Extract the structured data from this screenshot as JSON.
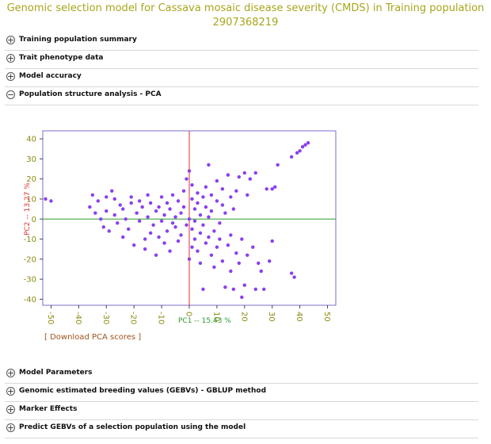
{
  "page": {
    "title_line1": "Genomic selection model for Cassava mosaic disease severity (CMDS) in Training population",
    "title_line2": "2907368219"
  },
  "sections_top": [
    {
      "label": "Training population summary",
      "toggle": "+"
    },
    {
      "label": "Trait phenotype data",
      "toggle": "+"
    },
    {
      "label": "Model accuracy",
      "toggle": "+"
    },
    {
      "label": "Population structure analysis - PCA",
      "toggle": "−"
    }
  ],
  "sections_bottom": [
    {
      "label": "Model Parameters",
      "toggle": "+"
    },
    {
      "label": "Genomic estimated breeding values (GEBVs) - GBLUP method",
      "toggle": "+"
    },
    {
      "label": "Marker Effects",
      "toggle": "+"
    },
    {
      "label": "Predict GEBVs of a selection population using the model",
      "toggle": "+"
    }
  ],
  "download_link": "[ Download PCA scores ]",
  "colors": {
    "title": "#a7a51c",
    "points": "#8a3ff0",
    "pc1_axis": "#2f9a2f",
    "pc2_axis": "#e03030",
    "frame": "#7b6fd0",
    "tick_labels": "#8a8a10",
    "link": "#a0521c"
  },
  "chart_data": {
    "type": "scatter",
    "xlabel": "PC1 -- 15.43 %",
    "ylabel": "PC2 -- 13.27 %",
    "xlim": [
      -53,
      53
    ],
    "ylim": [
      -43,
      44
    ],
    "xticks": [
      -50,
      -40,
      -30,
      -20,
      -10,
      0,
      10,
      20,
      30,
      40,
      50
    ],
    "yticks": [
      -40,
      -30,
      -20,
      -10,
      0,
      10,
      20,
      30,
      40
    ],
    "grid": false,
    "series": [
      {
        "points": [
          [
            -52,
            10
          ],
          [
            -50,
            9
          ],
          [
            -36,
            6
          ],
          [
            -34,
            3
          ],
          [
            -35,
            12
          ],
          [
            -33,
            9
          ],
          [
            -32,
            0
          ],
          [
            -31,
            -4
          ],
          [
            -30,
            4
          ],
          [
            -30,
            11
          ],
          [
            -29,
            -6
          ],
          [
            -28,
            14
          ],
          [
            -27,
            10
          ],
          [
            -27,
            2
          ],
          [
            -26,
            -2
          ],
          [
            -25,
            7
          ],
          [
            -24,
            5
          ],
          [
            -24,
            -9
          ],
          [
            -23,
            0
          ],
          [
            -22,
            -5
          ],
          [
            -21,
            11
          ],
          [
            -21,
            8
          ],
          [
            -20,
            -13
          ],
          [
            -19,
            3
          ],
          [
            -18,
            -1
          ],
          [
            -18,
            9
          ],
          [
            -17,
            6
          ],
          [
            -16,
            -10
          ],
          [
            -16,
            -15
          ],
          [
            -15,
            12
          ],
          [
            -15,
            1
          ],
          [
            -14,
            -7
          ],
          [
            -14,
            8
          ],
          [
            -13,
            -3
          ],
          [
            -12,
            4
          ],
          [
            -12,
            -18
          ],
          [
            -11,
            -9
          ],
          [
            -11,
            6
          ],
          [
            -10,
            11
          ],
          [
            -10,
            -1
          ],
          [
            -9,
            2
          ],
          [
            -9,
            -12
          ],
          [
            -8,
            8
          ],
          [
            -8,
            -6
          ],
          [
            -7,
            5
          ],
          [
            -7,
            -16
          ],
          [
            -6,
            -2
          ],
          [
            -6,
            12
          ],
          [
            -5,
            -4
          ],
          [
            -5,
            1
          ],
          [
            -4,
            9
          ],
          [
            -4,
            -11
          ],
          [
            -3,
            3
          ],
          [
            -3,
            -8
          ],
          [
            -2,
            6
          ],
          [
            -2,
            14
          ],
          [
            -1,
            -3
          ],
          [
            -1,
            20
          ],
          [
            0,
            -20
          ],
          [
            0,
            0
          ],
          [
            0,
            24
          ],
          [
            1,
            10
          ],
          [
            1,
            17
          ],
          [
            1,
            -5
          ],
          [
            1,
            -14
          ],
          [
            2,
            -1
          ],
          [
            2,
            5
          ],
          [
            2,
            -10
          ],
          [
            3,
            8
          ],
          [
            3,
            -16
          ],
          [
            3,
            13
          ],
          [
            4,
            -7
          ],
          [
            4,
            2
          ],
          [
            4,
            -22
          ],
          [
            5,
            11
          ],
          [
            5,
            -3
          ],
          [
            5,
            -35
          ],
          [
            6,
            6
          ],
          [
            6,
            -12
          ],
          [
            6,
            16
          ],
          [
            7,
            -9
          ],
          [
            7,
            1
          ],
          [
            7,
            27
          ],
          [
            8,
            -18
          ],
          [
            8,
            12
          ],
          [
            8,
            4
          ],
          [
            9,
            -6
          ],
          [
            9,
            -24
          ],
          [
            10,
            9
          ],
          [
            10,
            -14
          ],
          [
            10,
            19
          ],
          [
            11,
            -2
          ],
          [
            11,
            -10
          ],
          [
            12,
            7
          ],
          [
            12,
            15
          ],
          [
            12,
            -21
          ],
          [
            13,
            -34
          ],
          [
            13,
            3
          ],
          [
            14,
            -13
          ],
          [
            14,
            22
          ],
          [
            15,
            -8
          ],
          [
            15,
            11
          ],
          [
            15,
            -26
          ],
          [
            16,
            -35
          ],
          [
            16,
            5
          ],
          [
            17,
            -17
          ],
          [
            17,
            14
          ],
          [
            18,
            -22
          ],
          [
            18,
            21
          ],
          [
            19,
            -39
          ],
          [
            19,
            -10
          ],
          [
            20,
            23
          ],
          [
            20,
            -33
          ],
          [
            21,
            -18
          ],
          [
            21,
            12
          ],
          [
            22,
            20
          ],
          [
            23,
            -14
          ],
          [
            24,
            -35
          ],
          [
            24,
            23
          ],
          [
            25,
            -22
          ],
          [
            26,
            -26
          ],
          [
            27,
            -35
          ],
          [
            28,
            15
          ],
          [
            29,
            -21
          ],
          [
            30,
            -11
          ],
          [
            30,
            15
          ],
          [
            31,
            16
          ],
          [
            32,
            27
          ],
          [
            37,
            31
          ],
          [
            37,
            -27
          ],
          [
            38,
            -29
          ],
          [
            39,
            33
          ],
          [
            40,
            34
          ],
          [
            41,
            36
          ],
          [
            42,
            37
          ],
          [
            43,
            38
          ]
        ]
      }
    ]
  }
}
